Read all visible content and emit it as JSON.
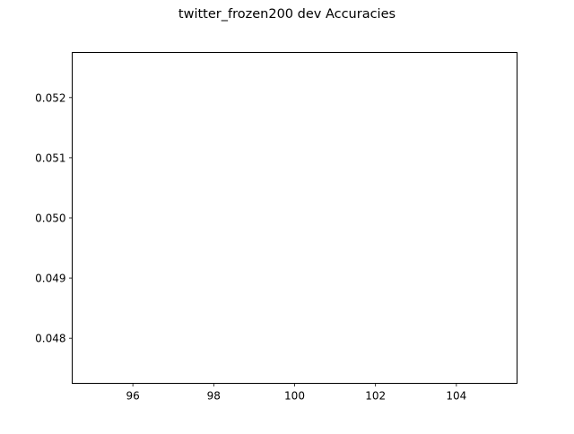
{
  "chart_data": {
    "type": "line",
    "title": "twitter_frozen200 dev Accuracies",
    "xlabel": "",
    "ylabel": "",
    "xlim": [
      94.5,
      105.5
    ],
    "ylim": [
      0.04725,
      0.05275
    ],
    "x_ticks": [
      96,
      98,
      100,
      102,
      104
    ],
    "x_tick_labels": [
      "96",
      "98",
      "100",
      "102",
      "104"
    ],
    "y_ticks": [
      0.048,
      0.049,
      0.05,
      0.051,
      0.052
    ],
    "y_tick_labels": [
      "0.048",
      "0.049",
      "0.050",
      "0.051",
      "0.052"
    ],
    "grid": false,
    "legend": "none",
    "series": []
  }
}
